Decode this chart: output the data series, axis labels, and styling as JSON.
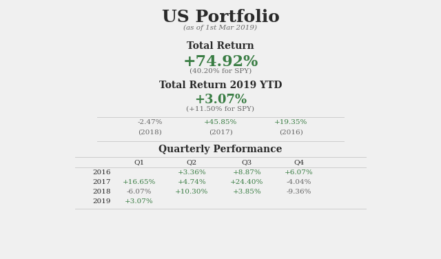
{
  "title": "US Portfolio",
  "subtitle": "(as of 1st Mar 2019)",
  "total_return_label": "Total Return",
  "total_return_value": "+74.92%",
  "total_return_spy": "(40.20% for SPY)",
  "ytd_label": "Total Return 2019 YTD",
  "ytd_value": "+3.07%",
  "ytd_spy": "(+11.50% for SPY)",
  "prev_years": [
    {
      "value": "-2.47%",
      "year": "(2018)",
      "color": "#666666"
    },
    {
      "value": "+45.85%",
      "year": "(2017)",
      "color": "#3a7d44"
    },
    {
      "value": "+19.35%",
      "year": "(2016)",
      "color": "#3a7d44"
    }
  ],
  "quarterly_label": "Quarterly Performance",
  "quarters": [
    "Q1",
    "Q2",
    "Q3",
    "Q4"
  ],
  "table_data": [
    {
      "year": "2016",
      "q1": "",
      "q2": "+3.36%",
      "q3": "+8.87%",
      "q4": "+6.07%"
    },
    {
      "year": "2017",
      "q1": "+16.65%",
      "q2": "+4.74%",
      "q3": "+24.40%",
      "q4": "-4.04%"
    },
    {
      "year": "2018",
      "q1": "-6.07%",
      "q2": "+10.30%",
      "q3": "+3.85%",
      "q4": "-9.36%"
    },
    {
      "year": "2019",
      "q1": "+3.07%",
      "q2": "",
      "q3": "",
      "q4": ""
    }
  ],
  "green_color": "#3a7d44",
  "dark_color": "#2a2a2a",
  "mid_color": "#666666",
  "bg_color": "#f0f0f0",
  "line_color": "#cccccc",
  "title_fs": 18,
  "subtitle_fs": 7.5,
  "section_label_fs": 10,
  "big_value_fs": 16,
  "medium_value_fs": 13,
  "small_fs": 7.5,
  "table_fs": 7.5
}
